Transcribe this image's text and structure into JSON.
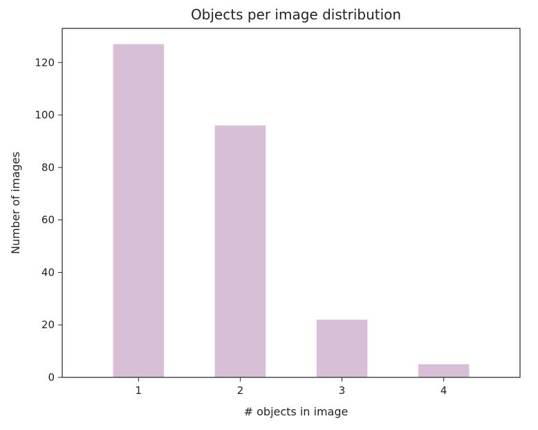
{
  "chart_data": {
    "type": "bar",
    "title": "Objects per image distribution",
    "xlabel": "# objects in image",
    "ylabel": "Number of images",
    "categories": [
      "1",
      "2",
      "3",
      "4"
    ],
    "values": [
      127,
      96,
      22,
      5
    ],
    "ylim": [
      0,
      133
    ],
    "yticks": [
      0,
      20,
      40,
      60,
      80,
      100,
      120
    ],
    "bar_color": "#d8bfd8",
    "grid": false,
    "legend": "none"
  }
}
